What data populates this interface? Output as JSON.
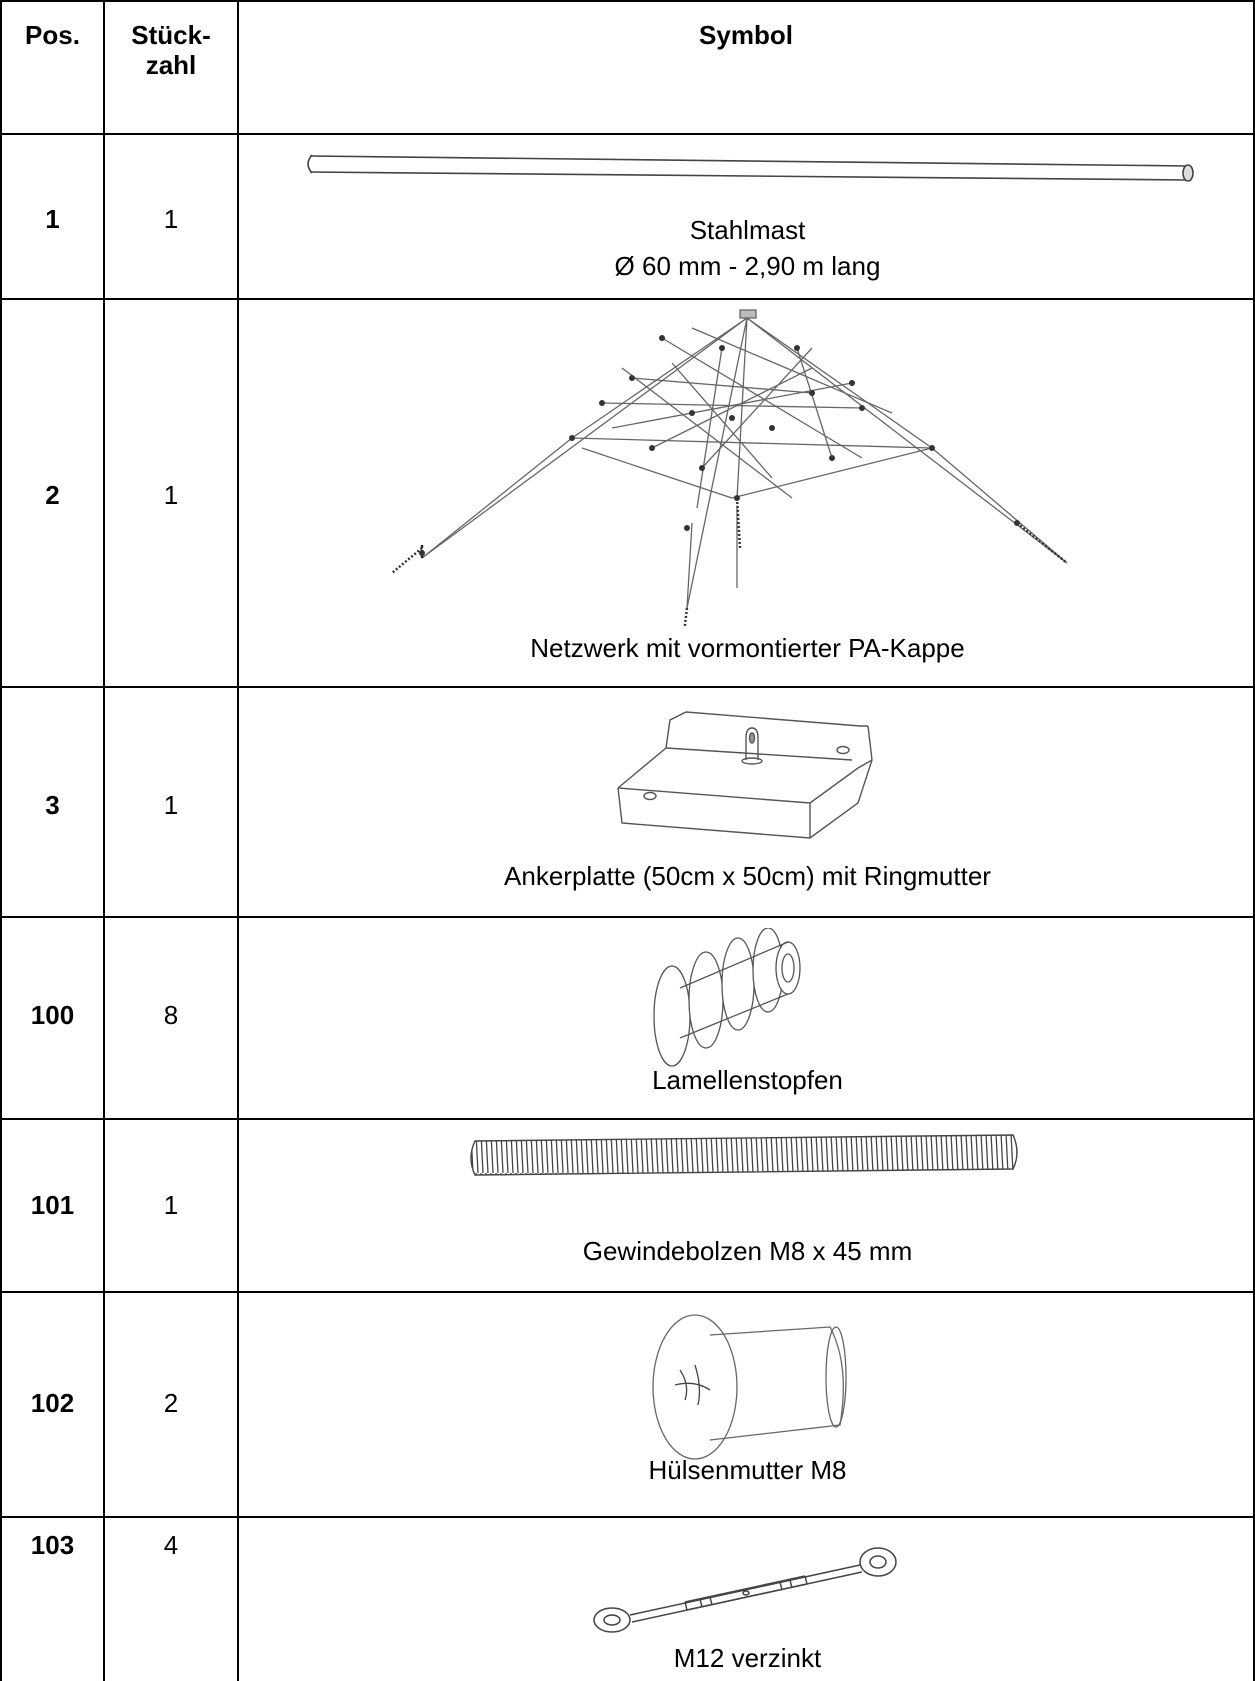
{
  "table": {
    "headers": {
      "pos": "Pos.",
      "qty_line1": "Stück-",
      "qty_line2": "zahl",
      "symbol": "Symbol"
    },
    "rows": [
      {
        "pos": "1",
        "qty": "1",
        "caption": [
          "Stahlmast",
          "Ø 60 mm - 2,90 m lang"
        ],
        "icon": "steel-mast-drawing"
      },
      {
        "pos": "2",
        "qty": "1",
        "caption": [
          "Netzwerk mit vormontierter PA-Kappe"
        ],
        "icon": "rope-net-drawing"
      },
      {
        "pos": "3",
        "qty": "1",
        "caption": [
          "Ankerplatte (50cm x 50cm) mit Ringmutter"
        ],
        "icon": "anchor-plate-drawing"
      },
      {
        "pos": "100",
        "qty": "8",
        "caption": [
          "Lamellenstopfen"
        ],
        "icon": "lamella-plug-drawing"
      },
      {
        "pos": "101",
        "qty": "1",
        "caption": [
          "Gewindebolzen M8 x 45 mm"
        ],
        "icon": "threaded-bolt-drawing"
      },
      {
        "pos": "102",
        "qty": "2",
        "caption": [
          "Hülsenmutter M8"
        ],
        "icon": "sleeve-nut-drawing"
      },
      {
        "pos": "103",
        "qty": "4",
        "caption": [
          "M12 verzinkt"
        ],
        "icon": "turnbuckle-drawing"
      }
    ]
  }
}
